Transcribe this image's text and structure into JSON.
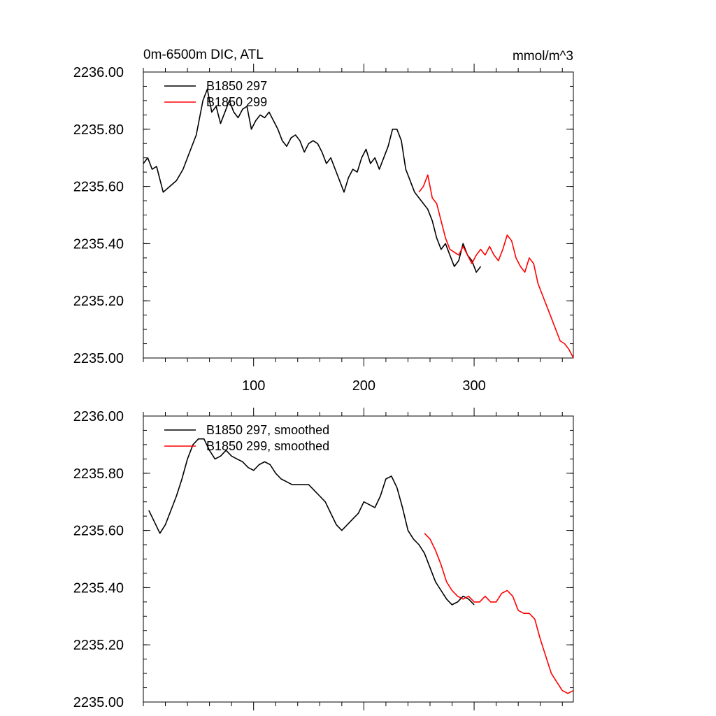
{
  "chart_data": [
    {
      "type": "line",
      "title_left": "0m-6500m DIC, ATL",
      "title_right": "mmol/m^3",
      "xlabel": "",
      "ylabel": "",
      "xlim": [
        0,
        390
      ],
      "ylim": [
        2235.0,
        2236.0
      ],
      "xticks": [
        100,
        200,
        300
      ],
      "yticks": [
        "2235.00",
        "2235.20",
        "2235.40",
        "2235.60",
        "2235.80",
        "2236.00"
      ],
      "legend_position": "top-left",
      "series": [
        {
          "name": "B1850 297",
          "color": "#000000",
          "x": [
            0,
            4,
            8,
            12,
            18,
            24,
            30,
            36,
            42,
            48,
            54,
            58,
            62,
            66,
            70,
            74,
            78,
            82,
            86,
            90,
            94,
            98,
            102,
            106,
            110,
            114,
            118,
            122,
            126,
            130,
            134,
            138,
            142,
            146,
            150,
            154,
            158,
            162,
            166,
            170,
            174,
            178,
            182,
            186,
            190,
            194,
            198,
            202,
            206,
            210,
            214,
            218,
            222,
            226,
            230,
            234,
            238,
            242,
            246,
            250,
            254,
            258,
            262,
            266,
            270,
            274,
            278,
            282,
            286,
            290,
            294,
            298,
            302,
            306
          ],
          "values": [
            2235.68,
            2235.7,
            2235.66,
            2235.67,
            2235.58,
            2235.6,
            2235.62,
            2235.66,
            2235.72,
            2235.78,
            2235.9,
            2235.94,
            2235.86,
            2235.88,
            2235.82,
            2235.86,
            2235.9,
            2235.86,
            2235.84,
            2235.87,
            2235.88,
            2235.8,
            2235.83,
            2235.85,
            2235.84,
            2235.86,
            2235.83,
            2235.8,
            2235.76,
            2235.74,
            2235.77,
            2235.78,
            2235.76,
            2235.72,
            2235.75,
            2235.76,
            2235.75,
            2235.72,
            2235.68,
            2235.7,
            2235.66,
            2235.62,
            2235.58,
            2235.63,
            2235.66,
            2235.65,
            2235.7,
            2235.73,
            2235.68,
            2235.7,
            2235.66,
            2235.7,
            2235.74,
            2235.8,
            2235.8,
            2235.76,
            2235.66,
            2235.62,
            2235.58,
            2235.56,
            2235.54,
            2235.52,
            2235.48,
            2235.42,
            2235.38,
            2235.4,
            2235.36,
            2235.32,
            2235.34,
            2235.4,
            2235.36,
            2235.34,
            2235.3,
            2235.32
          ]
        },
        {
          "name": "B1850 299",
          "color": "#ff0000",
          "x": [
            250,
            254,
            258,
            262,
            266,
            270,
            274,
            278,
            282,
            286,
            290,
            294,
            298,
            302,
            306,
            310,
            314,
            318,
            322,
            326,
            330,
            334,
            338,
            342,
            346,
            350,
            354,
            358,
            362,
            366,
            370,
            374,
            378,
            382,
            386,
            390
          ],
          "values": [
            2235.58,
            2235.6,
            2235.64,
            2235.56,
            2235.54,
            2235.48,
            2235.42,
            2235.38,
            2235.37,
            2235.36,
            2235.39,
            2235.36,
            2235.33,
            2235.36,
            2235.38,
            2235.36,
            2235.39,
            2235.36,
            2235.34,
            2235.38,
            2235.43,
            2235.41,
            2235.35,
            2235.32,
            2235.3,
            2235.35,
            2235.33,
            2235.26,
            2235.22,
            2235.18,
            2235.14,
            2235.1,
            2235.06,
            2235.05,
            2235.03,
            2235.0
          ]
        }
      ]
    },
    {
      "type": "line",
      "xlabel": "",
      "ylabel": "",
      "xlim": [
        0,
        390
      ],
      "ylim": [
        2235.0,
        2236.0
      ],
      "yticks": [
        "2235.00",
        "2235.20",
        "2235.40",
        "2235.60",
        "2235.80",
        "2236.00"
      ],
      "legend_position": "top-left",
      "series": [
        {
          "name": "B1850 297, smoothed",
          "color": "#000000",
          "x": [
            5,
            10,
            15,
            20,
            25,
            30,
            35,
            40,
            45,
            50,
            55,
            60,
            65,
            70,
            75,
            80,
            85,
            90,
            95,
            100,
            105,
            110,
            115,
            120,
            125,
            130,
            135,
            140,
            145,
            150,
            155,
            160,
            165,
            170,
            175,
            180,
            185,
            190,
            195,
            200,
            205,
            210,
            215,
            220,
            225,
            230,
            235,
            240,
            245,
            250,
            255,
            260,
            265,
            270,
            275,
            280,
            285,
            290,
            295,
            300
          ],
          "values": [
            2235.67,
            2235.63,
            2235.59,
            2235.62,
            2235.67,
            2235.72,
            2235.78,
            2235.85,
            2235.9,
            2235.92,
            2235.92,
            2235.88,
            2235.85,
            2235.86,
            2235.88,
            2235.86,
            2235.85,
            2235.84,
            2235.82,
            2235.81,
            2235.83,
            2235.84,
            2235.83,
            2235.8,
            2235.78,
            2235.77,
            2235.76,
            2235.76,
            2235.76,
            2235.76,
            2235.74,
            2235.72,
            2235.7,
            2235.66,
            2235.62,
            2235.6,
            2235.62,
            2235.64,
            2235.66,
            2235.7,
            2235.69,
            2235.68,
            2235.72,
            2235.78,
            2235.79,
            2235.75,
            2235.68,
            2235.6,
            2235.57,
            2235.55,
            2235.52,
            2235.47,
            2235.42,
            2235.39,
            2235.36,
            2235.34,
            2235.35,
            2235.37,
            2235.36,
            2235.34
          ]
        },
        {
          "name": "B1850 299, smoothed",
          "color": "#ff0000",
          "x": [
            255,
            260,
            265,
            270,
            275,
            280,
            285,
            290,
            295,
            300,
            305,
            310,
            315,
            320,
            325,
            330,
            335,
            340,
            345,
            350,
            355,
            360,
            365,
            370,
            375,
            380,
            385,
            390
          ],
          "values": [
            2235.59,
            2235.57,
            2235.53,
            2235.48,
            2235.42,
            2235.39,
            2235.37,
            2235.36,
            2235.37,
            2235.35,
            2235.35,
            2235.37,
            2235.35,
            2235.35,
            2235.38,
            2235.39,
            2235.37,
            2235.32,
            2235.31,
            2235.31,
            2235.29,
            2235.22,
            2235.16,
            2235.1,
            2235.07,
            2235.04,
            2235.03,
            2235.04
          ]
        }
      ]
    }
  ]
}
